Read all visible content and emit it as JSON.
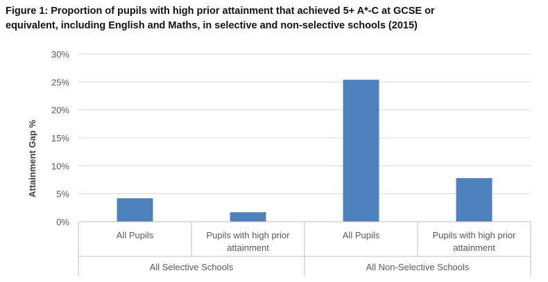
{
  "title_lines": [
    "Figure 1: Proportion of pupils with high prior attainment that achieved 5+ A*-C at GCSE or",
    "equivalent, including English and Maths, in selective and non-selective schools (2015)"
  ],
  "chart_data": {
    "type": "bar",
    "title": "Figure 1: Proportion of pupils with high prior attainment that achieved 5+ A*-C at GCSE or equivalent, including English and Maths, in selective and non-selective schools (2015)",
    "ylabel": "Attainment Gap %",
    "xlabel": "",
    "ylim": [
      0,
      30
    ],
    "yticks": [
      "0%",
      "5%",
      "10%",
      "15%",
      "20%",
      "25%",
      "30%"
    ],
    "ytick_values": [
      0,
      5,
      10,
      15,
      20,
      25,
      30
    ],
    "categories": [
      [
        "All Pupils"
      ],
      [
        "Pupils with high prior",
        "attainment"
      ],
      [
        "All Pupils"
      ],
      [
        "Pupils with high prior",
        "attainment"
      ]
    ],
    "groups": [
      "All Selective Schools",
      "All Non-Selective Schools"
    ],
    "values": [
      4.2,
      1.7,
      25.4,
      7.8
    ],
    "bar_color": "#4f81bd",
    "grid": true,
    "legend": "none"
  }
}
